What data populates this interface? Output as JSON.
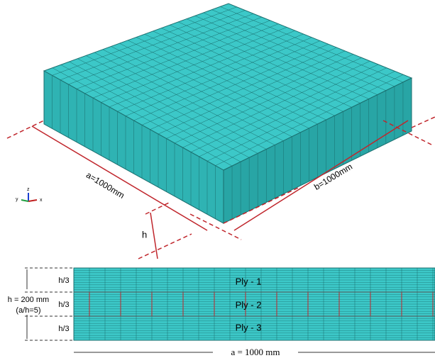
{
  "labels": {
    "a_top": "a=1000mm",
    "b_top": "b=1000mm",
    "h_top": "h",
    "h_total": "h = 200 mm",
    "ratio": "(a/h=5)",
    "layers": [
      "h/3",
      "h/3",
      "h/3"
    ],
    "plies": [
      "Ply - 1",
      "Ply - 2",
      "Ply - 3"
    ],
    "a_bottom": "a = 1000 mm",
    "axes": {
      "z": "z",
      "y": "y",
      "x": "x"
    }
  }
}
